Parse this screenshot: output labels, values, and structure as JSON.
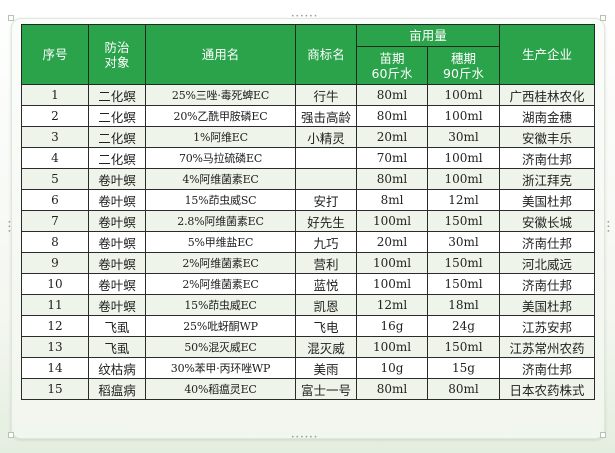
{
  "headers": {
    "seq": "序号",
    "target": "防治\n对象",
    "generic_name": "通用名",
    "brand_name": "商标名",
    "dosage_group": "亩用量",
    "seedling": "苗期\n60斤水",
    "heading": "穗期\n90斤水",
    "manufacturer": "生产企业"
  },
  "rows": [
    {
      "seq": "1",
      "target": "二化螟",
      "generic": "25%三唑·毒死蜱EC",
      "brand": "行牛",
      "seedling": "80ml",
      "heading": "100ml",
      "maker": "广西桂林农化"
    },
    {
      "seq": "2",
      "target": "二化螟",
      "generic": "20%乙酰甲胺磷EC",
      "brand": "强击高龄",
      "seedling": "80ml",
      "heading": "100ml",
      "maker": "湖南金穗"
    },
    {
      "seq": "3",
      "target": "二化螟",
      "generic": "1%阿维EC",
      "brand": "小精灵",
      "seedling": "20ml",
      "heading": "30ml",
      "maker": "安徽丰乐"
    },
    {
      "seq": "4",
      "target": "二化螟",
      "generic": "70%马拉硫磷EC",
      "brand": "",
      "seedling": "70ml",
      "heading": "100ml",
      "maker": "济南仕邦"
    },
    {
      "seq": "5",
      "target": "卷叶螟",
      "generic": "4%阿维菌素EC",
      "brand": "",
      "seedling": "80ml",
      "heading": "100ml",
      "maker": "浙江拜克"
    },
    {
      "seq": "6",
      "target": "卷叶螟",
      "generic": "15%茚虫威SC",
      "brand": "安打",
      "seedling": "8ml",
      "heading": "12ml",
      "maker": "美国杜邦"
    },
    {
      "seq": "7",
      "target": "卷叶螟",
      "generic": "2.8%阿维菌素EC",
      "brand": "好先生",
      "seedling": "100ml",
      "heading": "150ml",
      "maker": "安徽长城"
    },
    {
      "seq": "8",
      "target": "卷叶螟",
      "generic": "5%甲维盐EC",
      "brand": "九巧",
      "seedling": "20ml",
      "heading": "30ml",
      "maker": "济南仕邦"
    },
    {
      "seq": "9",
      "target": "卷叶螟",
      "generic": "2%阿维菌素EC",
      "brand": "营利",
      "seedling": "100ml",
      "heading": "150ml",
      "maker": "河北威远"
    },
    {
      "seq": "10",
      "target": "卷叶螟",
      "generic": "2%阿维菌素EC",
      "brand": "蓝悦",
      "seedling": "100ml",
      "heading": "150ml",
      "maker": "济南仕邦"
    },
    {
      "seq": "11",
      "target": "卷叶螟",
      "generic": "15%茚虫威EC",
      "brand": "凯恩",
      "seedling": "12ml",
      "heading": "18ml",
      "maker": "美国杜邦"
    },
    {
      "seq": "12",
      "target": "飞虱",
      "generic": "25%吡蚜酮WP",
      "brand": "飞电",
      "seedling": "16g",
      "heading": "24g",
      "maker": "江苏安邦"
    },
    {
      "seq": "13",
      "target": "飞虱",
      "generic": "50%混灭威EC",
      "brand": "混灭威",
      "seedling": "100ml",
      "heading": "150ml",
      "maker": "江苏常州农药"
    },
    {
      "seq": "14",
      "target": "纹枯病",
      "generic": "30%苯甲·丙环唑WP",
      "brand": "美雨",
      "seedling": "10g",
      "heading": "15g",
      "maker": "济南仕邦"
    },
    {
      "seq": "15",
      "target": "稻瘟病",
      "generic": "40%稻瘟灵EC",
      "brand": "富士一号",
      "seedling": "80ml",
      "heading": "80ml",
      "maker": "日本农药株式"
    }
  ]
}
